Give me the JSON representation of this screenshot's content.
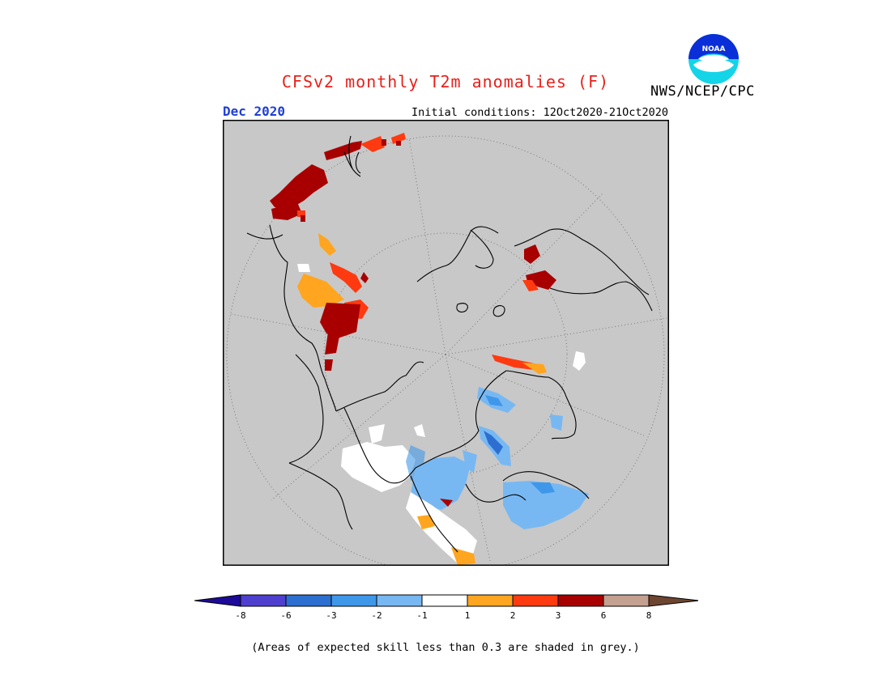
{
  "header": {
    "title": "CFSv2 monthly T2m anomalies (F)",
    "month": "Dec 2020",
    "initial_conditions": "Initial conditions: 12Oct2020-21Oct2020",
    "agency": "NWS/NCEP/CPC",
    "logo_text": "NOAA"
  },
  "colorbar": {
    "ticks": [
      "-8",
      "-6",
      "-3",
      "-2",
      "-1",
      "1",
      "2",
      "3",
      "6",
      "8"
    ],
    "colors": [
      "#1d0a9a",
      "#4f3fcf",
      "#2c6fd0",
      "#3f97ea",
      "#78b8f2",
      "#ffffff",
      "#ffa51f",
      "#ff3a10",
      "#a80000",
      "#c4a090",
      "#6e4530"
    ]
  },
  "legend_note": "(Areas of expected skill less than 0.3 are shaded in grey.)",
  "colors": {
    "title": "#e8201a",
    "month": "#1f3fd6",
    "map_background": "#c8c8c8"
  }
}
